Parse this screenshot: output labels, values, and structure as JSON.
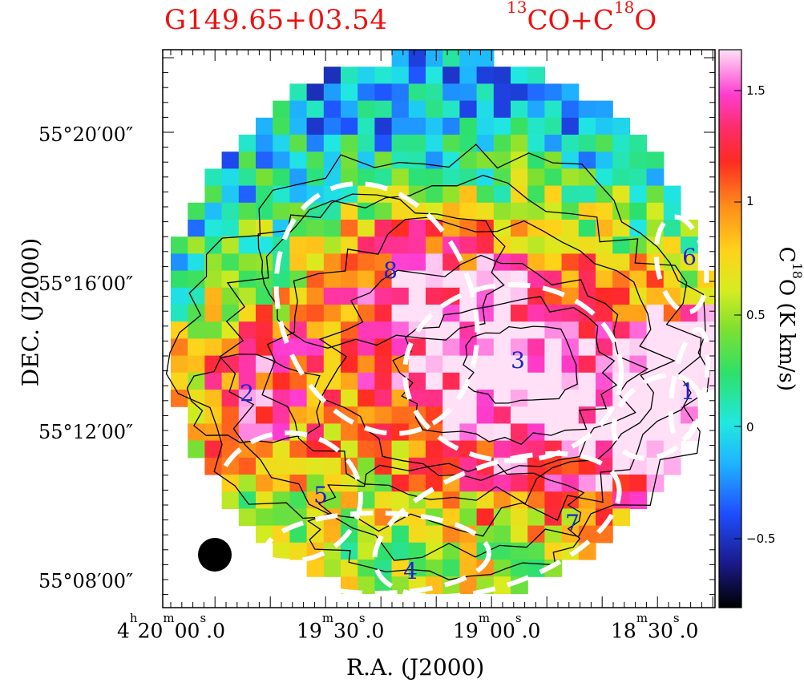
{
  "titles": {
    "source": "G149.65+03.54",
    "tracer_13": "13",
    "tracer_co": "CO+C",
    "tracer_18": "18",
    "tracer_o": "O"
  },
  "axes": {
    "xlabel": "R.A. (J2000)",
    "ylabel": "DEC. (J2000)",
    "colorbar_label_c": "C",
    "colorbar_label_18": "18",
    "colorbar_label_rest": "O (K km/s)",
    "y_ticks": [
      "55°20′00″",
      "55°16′00″",
      "55°12′00″",
      "55°08′00″"
    ],
    "x_ticks": [
      {
        "h": "4",
        "hsup": "h",
        "m": "20",
        "msup": "m",
        "s": "00",
        "ssup": "s",
        "frac": ".0"
      },
      {
        "h": "",
        "hsup": "",
        "m": "19",
        "msup": "m",
        "s": "30",
        "ssup": "s",
        "frac": ".0"
      },
      {
        "h": "",
        "hsup": "",
        "m": "19",
        "msup": "m",
        "s": "00",
        "ssup": "s",
        "frac": ".0"
      },
      {
        "h": "",
        "hsup": "",
        "m": "18",
        "msup": "m",
        "s": "30",
        "ssup": "s",
        "frac": ".0"
      }
    ],
    "colorbar_ticks": [
      "1.5",
      "1",
      "0.5",
      "0",
      "−0.5"
    ]
  },
  "chart_data": {
    "type": "heatmap",
    "title": "G149.65+03.54",
    "subtitle": "13CO+C18O",
    "xlabel": "R.A. (J2000)",
    "ylabel": "DEC. (J2000)",
    "colorbar": {
      "label": "C18O (K km/s)",
      "range": [
        -0.8,
        1.65
      ],
      "ticks": [
        -0.5,
        0,
        0.5,
        1,
        1.5
      ]
    },
    "grid_columns": 32,
    "grid_rows": 32,
    "field_shape": "circular",
    "contours": "13CO integrated intensity (black)",
    "clump_labels": [
      "1",
      "2",
      "3",
      "4",
      "5",
      "6",
      "7",
      "8"
    ],
    "beam": "filled black circle, lower-left",
    "dashed_ellipses": 8,
    "grid": false
  },
  "colors": {
    "title": "#ee1111",
    "labels_numbers": "#2222cc",
    "ellipses": "#ffffff",
    "contours": "#000000"
  }
}
